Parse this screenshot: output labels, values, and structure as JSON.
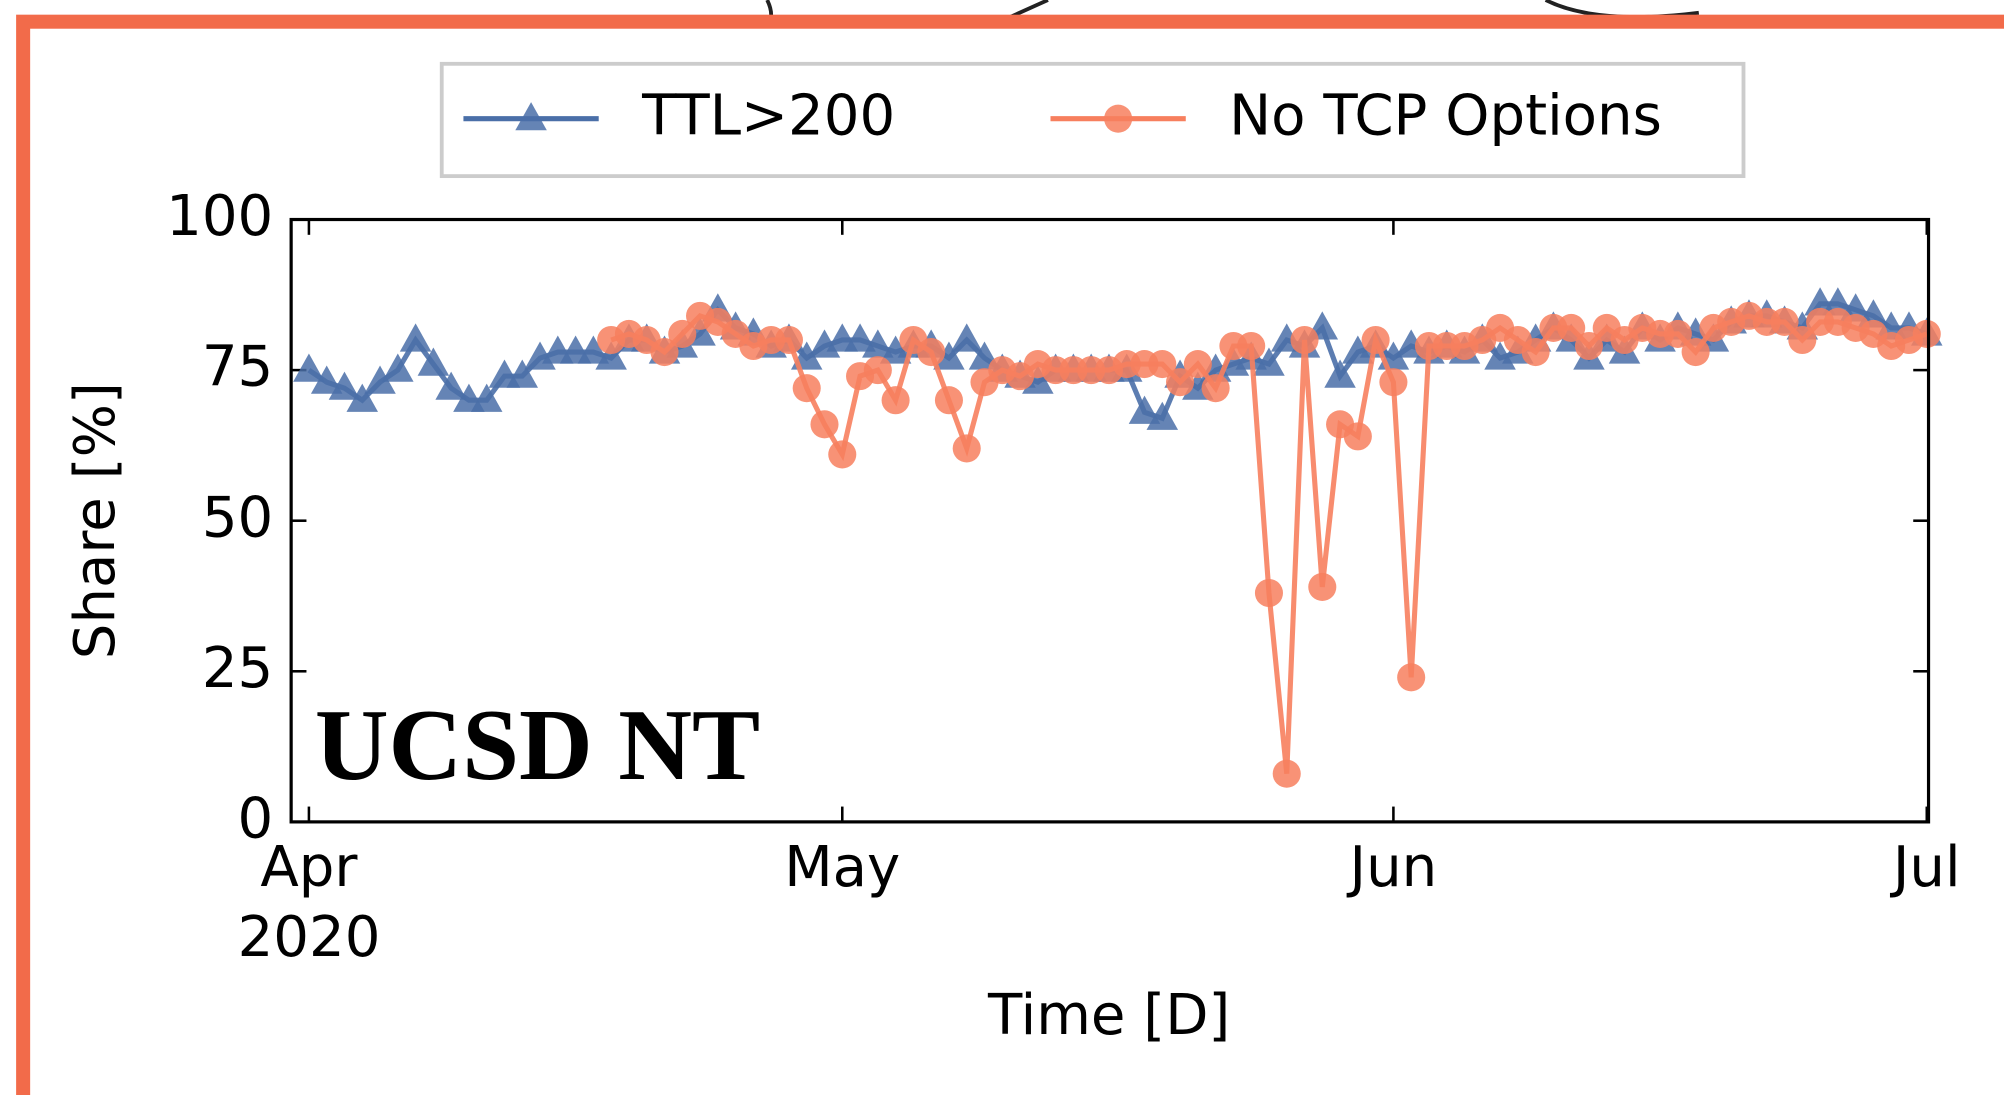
{
  "chart_data": {
    "type": "line",
    "x": [
      0,
      1,
      2,
      3,
      4,
      5,
      6,
      7,
      8,
      9,
      10,
      11,
      12,
      13,
      14,
      15,
      16,
      17,
      18,
      19,
      20,
      21,
      22,
      23,
      24,
      25,
      26,
      27,
      28,
      29,
      30,
      31,
      32,
      33,
      34,
      35,
      36,
      37,
      38,
      39,
      40,
      41,
      42,
      43,
      44,
      45,
      46,
      47,
      48,
      49,
      50,
      51,
      52,
      53,
      54,
      55,
      56,
      57,
      58,
      59,
      60,
      61,
      62,
      63,
      64,
      65,
      66,
      67,
      68,
      69,
      70,
      71,
      72,
      73,
      74,
      75,
      76,
      77,
      78,
      79,
      80,
      81,
      82,
      83,
      84,
      85,
      86,
      87,
      88,
      89,
      90,
      91
    ],
    "series": [
      {
        "name": "TTL>200",
        "color": "#4a6fa8",
        "marker": "triangle",
        "values": [
          75,
          73,
          72,
          70,
          73,
          75,
          80,
          76,
          72,
          70,
          70,
          74,
          74,
          77,
          78,
          78,
          78,
          77,
          80,
          80,
          78,
          79,
          81,
          85,
          82,
          81,
          79,
          80,
          77,
          79,
          80,
          80,
          79,
          78,
          79,
          79,
          77,
          80,
          77,
          75,
          74,
          73,
          75,
          75,
          75,
          75,
          75,
          68,
          67,
          74,
          72,
          75,
          76,
          77,
          76,
          80,
          79,
          82,
          74,
          78,
          79,
          77,
          79,
          78,
          79,
          78,
          80,
          77,
          78,
          80,
          82,
          80,
          77,
          80,
          78,
          82,
          80,
          82,
          81,
          80,
          83,
          84,
          84,
          83,
          82,
          86,
          86,
          85,
          84,
          82,
          82,
          81
        ]
      },
      {
        "name": "No TCP Options",
        "color": "#f77f5e",
        "marker": "circle",
        "values": [
          null,
          null,
          null,
          null,
          null,
          null,
          null,
          null,
          null,
          null,
          null,
          null,
          null,
          null,
          null,
          null,
          null,
          80,
          81,
          80,
          78,
          81,
          84,
          83,
          81,
          79,
          80,
          80,
          72,
          66,
          61,
          74,
          75,
          70,
          80,
          78,
          70,
          62,
          73,
          75,
          74,
          76,
          75,
          75,
          75,
          75,
          76,
          76,
          76,
          73,
          76,
          72,
          79,
          79,
          38,
          8,
          80,
          39,
          66,
          64,
          80,
          73,
          24,
          79,
          79,
          79,
          80,
          82,
          80,
          78,
          82,
          82,
          79,
          82,
          80,
          82,
          81,
          81,
          78,
          82,
          83,
          84,
          83,
          83,
          80,
          83,
          83,
          82,
          81,
          79,
          80,
          81
        ]
      }
    ],
    "xlim": [
      -1,
      91.1
    ],
    "xticks": [
      {
        "value": 0,
        "label": "Apr"
      },
      {
        "value": 30,
        "label": "May"
      },
      {
        "value": 61,
        "label": "Jun"
      },
      {
        "value": 91,
        "label": "Jul"
      }
    ],
    "xtick_year": "2020",
    "ylim": [
      0,
      100
    ],
    "yticks": [
      0,
      25,
      50,
      75,
      100
    ],
    "xlabel": "Time [D]",
    "ylabel": "Share [%]",
    "annotation": "UCSD NT",
    "legend": "upper center",
    "grid": false
  }
}
